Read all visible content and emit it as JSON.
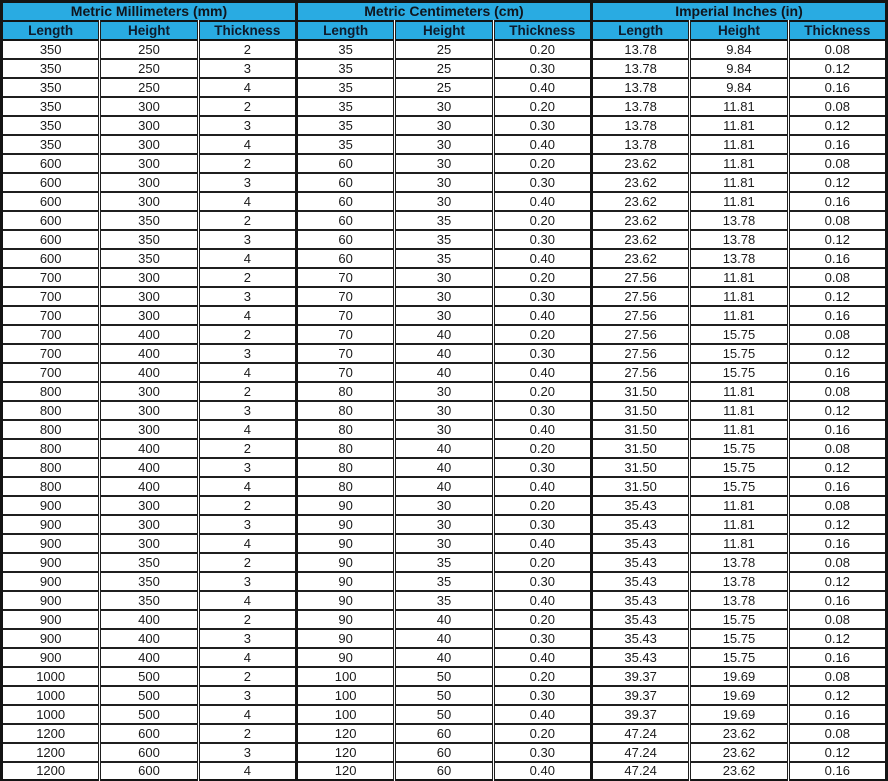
{
  "table": {
    "groups": [
      {
        "label": "Metric Millimeters (mm)",
        "columns": [
          "Length",
          "Height",
          "Thickness"
        ]
      },
      {
        "label": "Metric Centimeters (cm)",
        "columns": [
          "Length",
          "Height",
          "Thickness"
        ]
      },
      {
        "label": "Imperial Inches (in)",
        "columns": [
          "Length",
          "Height",
          "Thickness"
        ]
      }
    ],
    "rows": [
      [
        "350",
        "250",
        "2",
        "35",
        "25",
        "0.20",
        "13.78",
        "9.84",
        "0.08"
      ],
      [
        "350",
        "250",
        "3",
        "35",
        "25",
        "0.30",
        "13.78",
        "9.84",
        "0.12"
      ],
      [
        "350",
        "250",
        "4",
        "35",
        "25",
        "0.40",
        "13.78",
        "9.84",
        "0.16"
      ],
      [
        "350",
        "300",
        "2",
        "35",
        "30",
        "0.20",
        "13.78",
        "11.81",
        "0.08"
      ],
      [
        "350",
        "300",
        "3",
        "35",
        "30",
        "0.30",
        "13.78",
        "11.81",
        "0.12"
      ],
      [
        "350",
        "300",
        "4",
        "35",
        "30",
        "0.40",
        "13.78",
        "11.81",
        "0.16"
      ],
      [
        "600",
        "300",
        "2",
        "60",
        "30",
        "0.20",
        "23.62",
        "11.81",
        "0.08"
      ],
      [
        "600",
        "300",
        "3",
        "60",
        "30",
        "0.30",
        "23.62",
        "11.81",
        "0.12"
      ],
      [
        "600",
        "300",
        "4",
        "60",
        "30",
        "0.40",
        "23.62",
        "11.81",
        "0.16"
      ],
      [
        "600",
        "350",
        "2",
        "60",
        "35",
        "0.20",
        "23.62",
        "13.78",
        "0.08"
      ],
      [
        "600",
        "350",
        "3",
        "60",
        "35",
        "0.30",
        "23.62",
        "13.78",
        "0.12"
      ],
      [
        "600",
        "350",
        "4",
        "60",
        "35",
        "0.40",
        "23.62",
        "13.78",
        "0.16"
      ],
      [
        "700",
        "300",
        "2",
        "70",
        "30",
        "0.20",
        "27.56",
        "11.81",
        "0.08"
      ],
      [
        "700",
        "300",
        "3",
        "70",
        "30",
        "0.30",
        "27.56",
        "11.81",
        "0.12"
      ],
      [
        "700",
        "300",
        "4",
        "70",
        "30",
        "0.40",
        "27.56",
        "11.81",
        "0.16"
      ],
      [
        "700",
        "400",
        "2",
        "70",
        "40",
        "0.20",
        "27.56",
        "15.75",
        "0.08"
      ],
      [
        "700",
        "400",
        "3",
        "70",
        "40",
        "0.30",
        "27.56",
        "15.75",
        "0.12"
      ],
      [
        "700",
        "400",
        "4",
        "70",
        "40",
        "0.40",
        "27.56",
        "15.75",
        "0.16"
      ],
      [
        "800",
        "300",
        "2",
        "80",
        "30",
        "0.20",
        "31.50",
        "11.81",
        "0.08"
      ],
      [
        "800",
        "300",
        "3",
        "80",
        "30",
        "0.30",
        "31.50",
        "11.81",
        "0.12"
      ],
      [
        "800",
        "300",
        "4",
        "80",
        "30",
        "0.40",
        "31.50",
        "11.81",
        "0.16"
      ],
      [
        "800",
        "400",
        "2",
        "80",
        "40",
        "0.20",
        "31.50",
        "15.75",
        "0.08"
      ],
      [
        "800",
        "400",
        "3",
        "80",
        "40",
        "0.30",
        "31.50",
        "15.75",
        "0.12"
      ],
      [
        "800",
        "400",
        "4",
        "80",
        "40",
        "0.40",
        "31.50",
        "15.75",
        "0.16"
      ],
      [
        "900",
        "300",
        "2",
        "90",
        "30",
        "0.20",
        "35.43",
        "11.81",
        "0.08"
      ],
      [
        "900",
        "300",
        "3",
        "90",
        "30",
        "0.30",
        "35.43",
        "11.81",
        "0.12"
      ],
      [
        "900",
        "300",
        "4",
        "90",
        "30",
        "0.40",
        "35.43",
        "11.81",
        "0.16"
      ],
      [
        "900",
        "350",
        "2",
        "90",
        "35",
        "0.20",
        "35.43",
        "13.78",
        "0.08"
      ],
      [
        "900",
        "350",
        "3",
        "90",
        "35",
        "0.30",
        "35.43",
        "13.78",
        "0.12"
      ],
      [
        "900",
        "350",
        "4",
        "90",
        "35",
        "0.40",
        "35.43",
        "13.78",
        "0.16"
      ],
      [
        "900",
        "400",
        "2",
        "90",
        "40",
        "0.20",
        "35.43",
        "15.75",
        "0.08"
      ],
      [
        "900",
        "400",
        "3",
        "90",
        "40",
        "0.30",
        "35.43",
        "15.75",
        "0.12"
      ],
      [
        "900",
        "400",
        "4",
        "90",
        "40",
        "0.40",
        "35.43",
        "15.75",
        "0.16"
      ],
      [
        "1000",
        "500",
        "2",
        "100",
        "50",
        "0.20",
        "39.37",
        "19.69",
        "0.08"
      ],
      [
        "1000",
        "500",
        "3",
        "100",
        "50",
        "0.30",
        "39.37",
        "19.69",
        "0.12"
      ],
      [
        "1000",
        "500",
        "4",
        "100",
        "50",
        "0.40",
        "39.37",
        "19.69",
        "0.16"
      ],
      [
        "1200",
        "600",
        "2",
        "120",
        "60",
        "0.20",
        "47.24",
        "23.62",
        "0.08"
      ],
      [
        "1200",
        "600",
        "3",
        "120",
        "60",
        "0.30",
        "47.24",
        "23.62",
        "0.12"
      ],
      [
        "1200",
        "600",
        "4",
        "120",
        "60",
        "0.40",
        "47.24",
        "23.62",
        "0.16"
      ]
    ]
  },
  "colors": {
    "header_bg": "#29abe2",
    "border": "#1f1f1f",
    "frame": "#141414",
    "data_bg": "#ffffff",
    "data_text": "#1a1a1a",
    "header_text": "#10151d"
  }
}
